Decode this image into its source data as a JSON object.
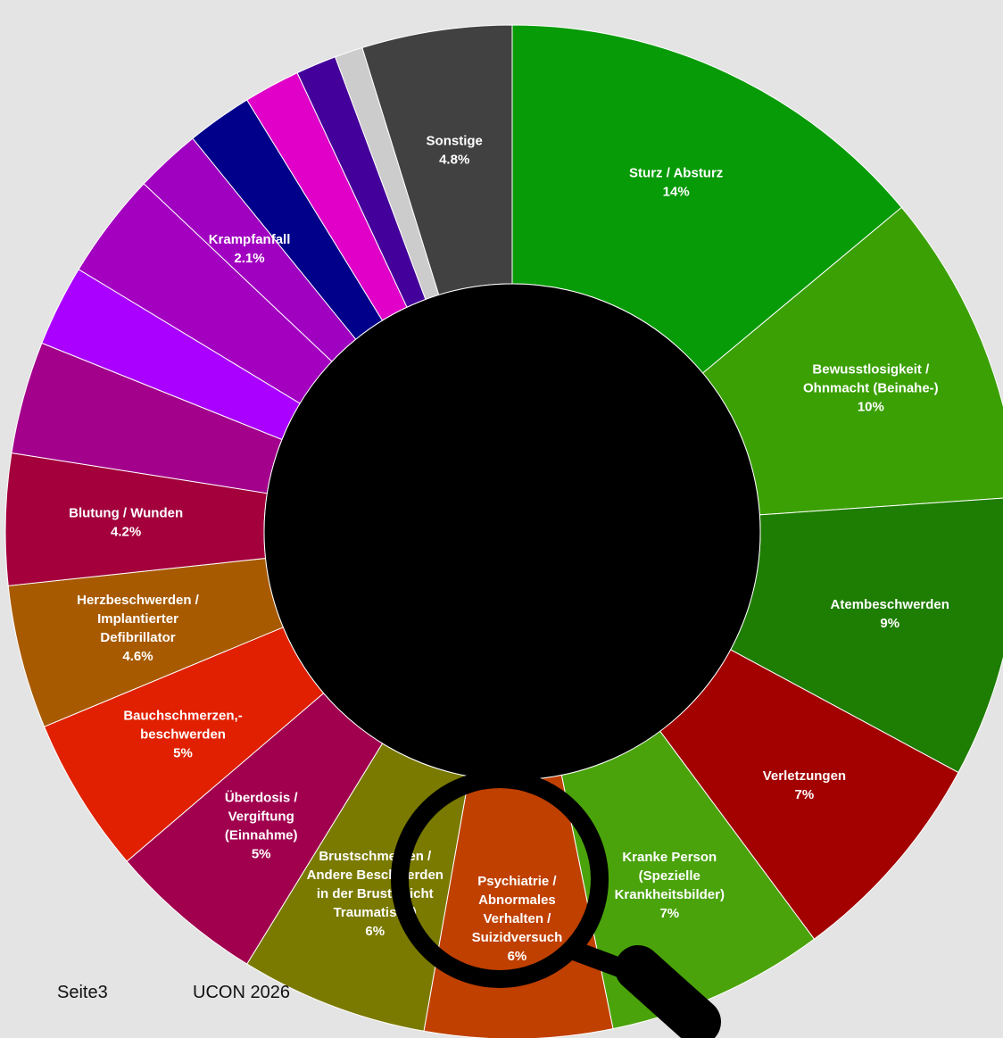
{
  "chart_data": {
    "type": "donut",
    "slices": [
      {
        "name": "Sturz / Absturz",
        "value": 14,
        "value_label": "14%",
        "label_lines": [
          "Sturz / Absturz"
        ],
        "color": "#079b07"
      },
      {
        "name": "Bewusstlosigkeit / Ohnmacht (Beinahe-)",
        "value": 10,
        "value_label": "10%",
        "label_lines": [
          "Bewusstlosigkeit /",
          "Ohnmacht (Beinahe-)"
        ],
        "color": "#3aa004"
      },
      {
        "name": "Atembeschwerden",
        "value": 9,
        "value_label": "9%",
        "label_lines": [
          "Atembeschwerden"
        ],
        "color": "#1e7d03"
      },
      {
        "name": "Verletzungen",
        "value": 7,
        "value_label": "7%",
        "label_lines": [
          "Verletzungen"
        ],
        "color": "#a30000"
      },
      {
        "name": "Kranke Person (Spezielle Krankheitsbilder)",
        "value": 7,
        "value_label": "7%",
        "label_lines": [
          "Kranke Person",
          "(Spezielle",
          "Krankheitsbilder)"
        ],
        "color": "#4aa30b"
      },
      {
        "name": "Psychiatrie / Abnormales Verhalten / Suizidversuch",
        "value": 6,
        "value_label": "6%",
        "label_lines": [
          "Psychiatrie /",
          "Abnormales",
          "Verhalten /",
          "Suizidversuch"
        ],
        "color": "#c04000"
      },
      {
        "name": "Brustschmerzen / Andere Beschwerden in der Brust (Nicht Traumatisch)",
        "value": 6,
        "value_label": "6%",
        "label_lines": [
          "Brustschmerzen /",
          "Andere Beschwerden",
          "in der Brust (Nicht",
          "Traumatisch)"
        ],
        "color": "#7a7a00"
      },
      {
        "name": "Überdosis / Vergiftung (Einnahme)",
        "value": 5,
        "value_label": "5%",
        "label_lines": [
          "Überdosis /",
          "Vergiftung",
          "(Einnahme)"
        ],
        "color": "#a1004e"
      },
      {
        "name": "Bauchschmerzen,-beschwerden",
        "value": 5,
        "value_label": "5%",
        "label_lines": [
          "Bauchschmerzen,-",
          "beschwerden"
        ],
        "color": "#e02000"
      },
      {
        "name": "Herzbeschwerden / Implantierter Defibrillator",
        "value": 4.6,
        "value_label": "4.6%",
        "label_lines": [
          "Herzbeschwerden /",
          "Implantierter",
          "Defibrillator"
        ],
        "color": "#a85a00"
      },
      {
        "name": "Blutung / Wunden",
        "value": 4.2,
        "value_label": "4.2%",
        "label_lines": [
          "Blutung / Wunden"
        ],
        "color": "#a3003c"
      },
      {
        "name": "",
        "value": 3.6,
        "value_label": "",
        "label_lines": [],
        "color": "#a3008c"
      },
      {
        "name": "",
        "value": 2.6,
        "value_label": "",
        "label_lines": [],
        "color": "#aa00ff"
      },
      {
        "name": "",
        "value": 3.4,
        "value_label": "",
        "label_lines": [],
        "color": "#a300c0"
      },
      {
        "name": "Krampfanfall",
        "value": 2.1,
        "value_label": "2.1%",
        "label_lines": [
          "Krampfanfall"
        ],
        "color": "#a000c0"
      },
      {
        "name": "",
        "value": 2.1,
        "value_label": "",
        "label_lines": [],
        "color": "#00008b"
      },
      {
        "name": "",
        "value": 1.8,
        "value_label": "",
        "label_lines": [],
        "color": "#e000c8"
      },
      {
        "name": "",
        "value": 1.3,
        "value_label": "",
        "label_lines": [],
        "color": "#44009a"
      },
      {
        "name": "",
        "value": 0.9,
        "value_label": "",
        "label_lines": [],
        "color": "#cccccc"
      },
      {
        "name": "Sonstige",
        "value": 4.8,
        "value_label": "4.8%",
        "label_lines": [
          "Sonstige"
        ],
        "color": "#414141"
      }
    ],
    "center_color": "#000000",
    "border_color": "#ffffff",
    "magnifier": {
      "target": "Psychiatrie / Abnormales Verhalten / Suizidversuch",
      "icon": "magnifying-glass-icon"
    }
  },
  "footer": {
    "page_label": "Seite3",
    "event_label": "UCON 2026"
  }
}
